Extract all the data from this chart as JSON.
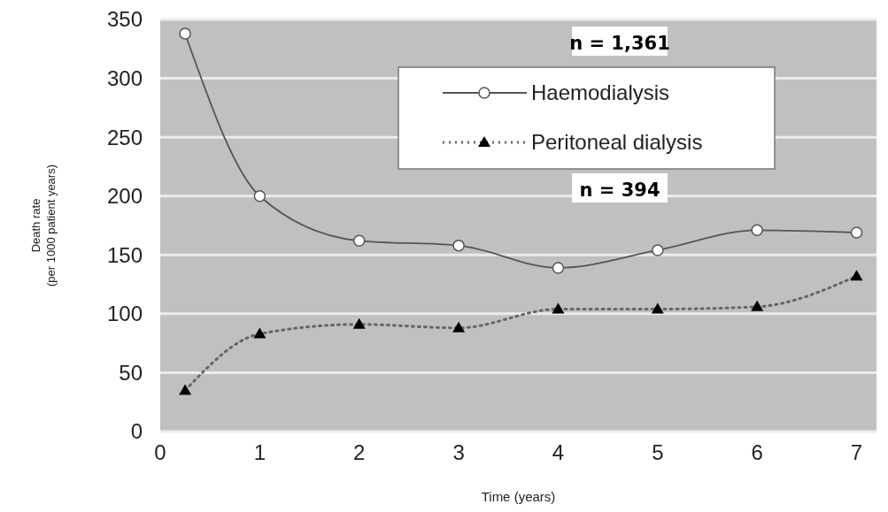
{
  "chart_data": {
    "type": "line",
    "xlabel": "Time (years)",
    "ylabel": "Death rate\n(per 1000 patient years)",
    "xlim": [
      0,
      7.2
    ],
    "xticks": [
      0,
      1,
      2,
      3,
      4,
      5,
      6,
      7
    ],
    "ylim": [
      0,
      350
    ],
    "yticks": [
      0,
      50,
      100,
      150,
      200,
      250,
      300,
      350
    ],
    "grid": "y",
    "legend": "top right",
    "annotations": [
      "n = 1,361",
      "n = 394"
    ],
    "series": [
      {
        "name": "Haemodialysis",
        "color": "#555555",
        "marker": "circle",
        "line_style": "solid",
        "x": [
          0.25,
          1,
          2,
          3,
          4,
          5,
          6,
          7
        ],
        "values": [
          338,
          200,
          162,
          158,
          139,
          154,
          171,
          169
        ]
      },
      {
        "name": "Peritoneal dialysis",
        "color": "#000000",
        "marker": "triangle",
        "line_style": "dotted",
        "x": [
          0.25,
          1,
          2,
          3,
          4,
          5,
          6,
          7
        ],
        "values": [
          35,
          83,
          91,
          88,
          104,
          104,
          106,
          132
        ]
      }
    ]
  }
}
